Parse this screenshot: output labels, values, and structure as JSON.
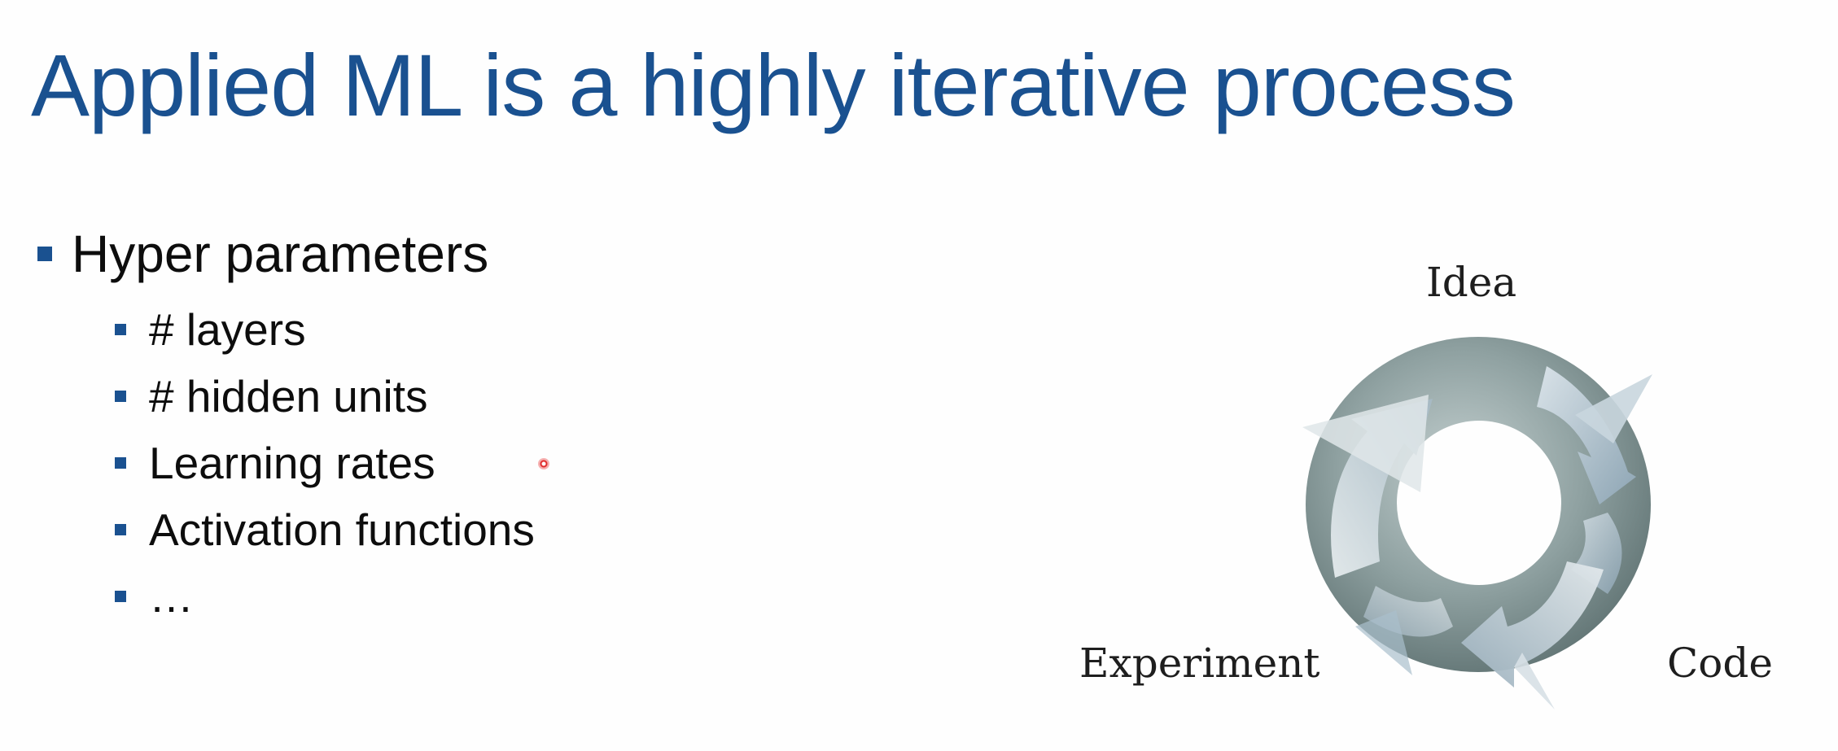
{
  "slide": {
    "title": "Applied ML is a highly iterative process",
    "bullet": {
      "label": "Hyper parameters",
      "sub_items": [
        "# layers",
        "# hidden units",
        "Learning rates",
        "Activation functions",
        "…"
      ]
    },
    "cycle_diagram": {
      "labels": {
        "top": "Idea",
        "left": "Experiment",
        "right": "Code"
      },
      "icon": "circular-arrows-icon"
    }
  },
  "colors": {
    "title": "#1a5190",
    "bullet_marker": "#1a5190",
    "body_text": "#0d0d0d",
    "pointer": "#e02a2a"
  }
}
